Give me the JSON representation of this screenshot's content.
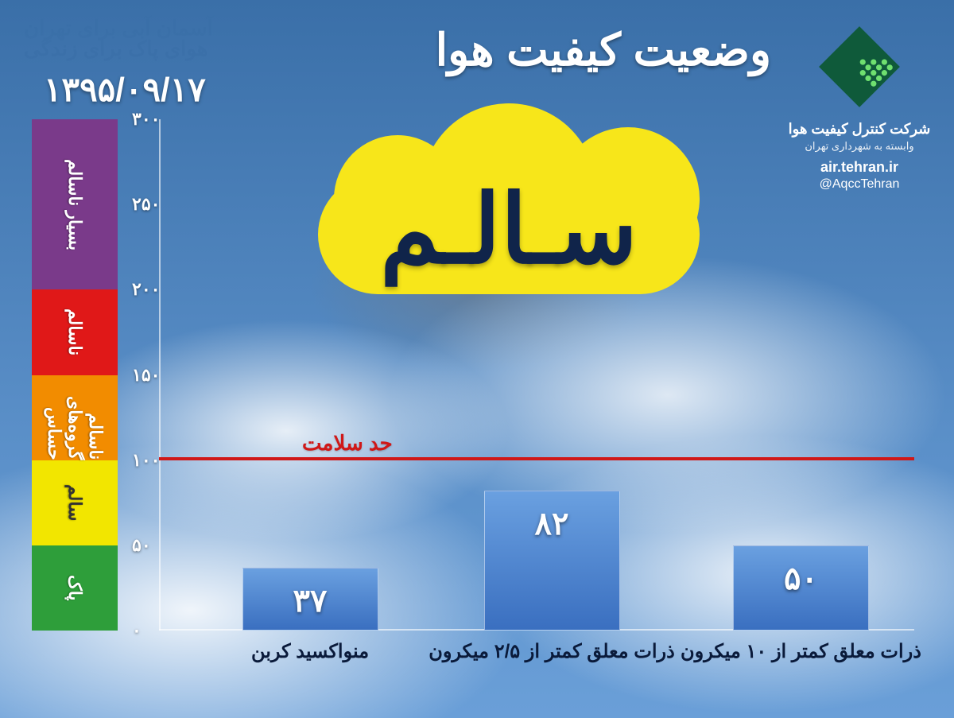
{
  "header": {
    "title": "وضعیت کیفیت هوا",
    "slogan_line1": "آسمان آبی برای تهران",
    "slogan_line2": "هوای پاک برای زندگی",
    "date": "۱۳۹۵/۰۹/۱۷"
  },
  "logo": {
    "org": "شرکت کنترل کیفیت هوا",
    "sub": "وابسته به شهرداری تهران",
    "url": "air.tehran.ir",
    "handle": "@AqccTehran",
    "fill": "#0f5a3a",
    "dot": "#6fe06f"
  },
  "status": {
    "label": "سـالـم",
    "cloud_color": "#f7e61a",
    "text_color": "#10244a"
  },
  "chart": {
    "type": "bar",
    "y_max": 300,
    "tick_step": 50,
    "ticks": [
      "۰",
      "۵۰",
      "۱۰۰",
      "۱۵۰",
      "۲۰۰",
      "۲۵۰",
      "۳۰۰"
    ],
    "scale_bands": [
      {
        "label": "پاک",
        "from": 0,
        "to": 50,
        "color": "#2e9e3a"
      },
      {
        "label": "سالم",
        "from": 50,
        "to": 100,
        "color": "#f2e600"
      },
      {
        "label": "ناسالم گروه‌های حساس",
        "from": 100,
        "to": 150,
        "color": "#f28c00"
      },
      {
        "label": "ناسالم",
        "from": 150,
        "to": 200,
        "color": "#e01818"
      },
      {
        "label": "بسیار ناسالم",
        "from": 200,
        "to": 300,
        "color": "#7a3a8a"
      }
    ],
    "threshold": {
      "value": 100,
      "label": "حد سلامت",
      "color": "#d01818"
    },
    "bar_color_top": "#6aa0e0",
    "bar_color_bottom": "#3a6fc0",
    "bar_width_pct": 18,
    "bars": [
      {
        "label": "منواکسید کربن",
        "value": 37,
        "display": "۳۷",
        "center_pct": 20
      },
      {
        "label": "ذرات معلق کمتر از ۲/۵ میکرون",
        "value": 82,
        "display": "۸۲",
        "center_pct": 52
      },
      {
        "label": "ذرات معلق کمتر از ۱۰ میکرون",
        "value": 50,
        "display": "۵۰",
        "center_pct": 85
      }
    ]
  }
}
